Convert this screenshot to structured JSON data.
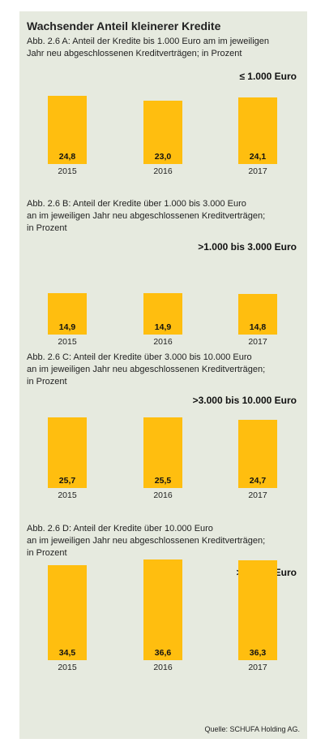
{
  "title": "Wachsender Anteil kleinerer Kredite",
  "source": "Quelle: SCHUFA Holding AG.",
  "chart_data": [
    {
      "type": "bar",
      "title": "Abb. 2.6 A: Anteil der Kredite bis 1.000 Euro am im jeweiligen Jahr neu abgeschlossenen Kreditverträgen; in Prozent",
      "title_lines": [
        "Abb. 2.6 A: Anteil der Kredite bis 1.000 Euro am im jeweiligen",
        "Jahr neu abgeschlossenen Kreditverträgen; in Prozent"
      ],
      "range_label": "≤ 1.000 Euro",
      "categories": [
        "2015",
        "2016",
        "2017"
      ],
      "values": [
        24.8,
        23.0,
        24.1
      ],
      "value_labels": [
        "24,8",
        "23,0",
        "24,1"
      ],
      "color": "#ffbe0f"
    },
    {
      "type": "bar",
      "title": "Abb. 2.6 B: Anteil der Kredite über 1.000 bis 3.000 Euro an im jeweiligen Jahr neu abgeschlossenen Kreditverträgen; in Prozent",
      "title_lines": [
        "Abb. 2.6 B: Anteil der Kredite über 1.000 bis 3.000 Euro",
        "an im jeweiligen Jahr neu abgeschlossenen Kreditverträgen;",
        "in Prozent"
      ],
      "range_label": ">1.000 bis 3.000 Euro",
      "categories": [
        "2015",
        "2016",
        "2017"
      ],
      "values": [
        14.9,
        14.9,
        14.8
      ],
      "value_labels": [
        "14,9",
        "14,9",
        "14,8"
      ],
      "color": "#ffbe0f"
    },
    {
      "type": "bar",
      "title": "Abb. 2.6 C: Anteil der Kredite über 3.000 bis 10.000 Euro an im jeweiligen Jahr neu abgeschlossenen Kreditverträgen; in Prozent",
      "title_lines": [
        "Abb. 2.6 C: Anteil der Kredite über 3.000 bis 10.000 Euro",
        "an im jeweiligen Jahr neu abgeschlossenen Kreditverträgen;",
        "in Prozent"
      ],
      "range_label": ">3.000 bis 10.000 Euro",
      "categories": [
        "2015",
        "2016",
        "2017"
      ],
      "values": [
        25.7,
        25.5,
        24.7
      ],
      "value_labels": [
        "25,7",
        "25,5",
        "24,7"
      ],
      "color": "#ffbe0f"
    },
    {
      "type": "bar",
      "title": "Abb. 2.6 D: Anteil der Kredite über 10.000 Euro an im jeweiligen Jahr neu abgeschlossenen Kreditverträgen; in Prozent",
      "title_lines": [
        "Abb. 2.6 D: Anteil der Kredite über 10.000 Euro",
        "an im jeweiligen Jahr neu abgeschlossenen Kreditverträgen;",
        "in Prozent"
      ],
      "range_label": ">10.000 Euro",
      "categories": [
        "2015",
        "2016",
        "2017"
      ],
      "values": [
        34.5,
        36.6,
        36.3
      ],
      "value_labels": [
        "34,5",
        "36,6",
        "36,3"
      ],
      "color": "#ffbe0f"
    }
  ]
}
